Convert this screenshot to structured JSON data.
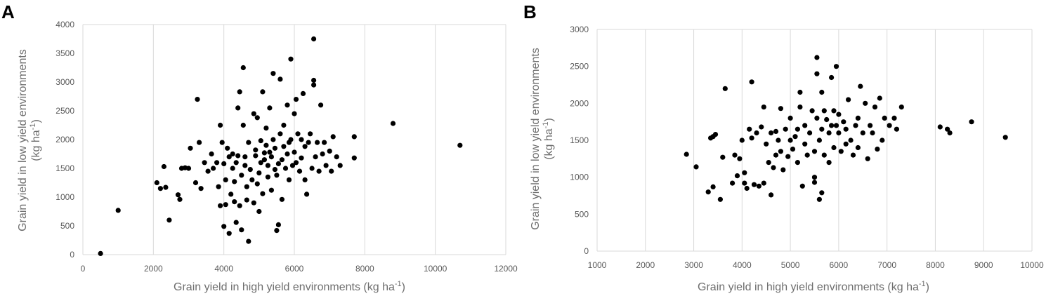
{
  "chart_data": [
    {
      "panel": "A",
      "type": "scatter",
      "xlabel": "Grain yield in high yield environments (kg ha",
      "xlabel_sup": "-1",
      "xlabel_end": ")",
      "ylabel_line1": "Grain yield in low yield environments",
      "ylabel_line2": "(kg ha",
      "ylabel_sup": "-1",
      "ylabel_end": ")",
      "xlim": [
        0,
        12000
      ],
      "ylim": [
        0,
        4000
      ],
      "xticks": [
        "0",
        "2000",
        "4000",
        "6000",
        "8000",
        "10000",
        "12000"
      ],
      "yticks": [
        "0",
        "500",
        "1000",
        "1500",
        "2000",
        "2500",
        "3000",
        "3500",
        "4000"
      ],
      "grid": "vertical",
      "points": [
        [
          500,
          20
        ],
        [
          1000,
          770
        ],
        [
          2100,
          1250
        ],
        [
          2200,
          1150
        ],
        [
          2300,
          1530
        ],
        [
          2350,
          1170
        ],
        [
          2450,
          600
        ],
        [
          2700,
          1040
        ],
        [
          2750,
          960
        ],
        [
          2800,
          1500
        ],
        [
          2900,
          1510
        ],
        [
          3000,
          1500
        ],
        [
          3050,
          1850
        ],
        [
          3200,
          1250
        ],
        [
          3250,
          2700
        ],
        [
          3300,
          1950
        ],
        [
          3350,
          1150
        ],
        [
          3450,
          1600
        ],
        [
          3550,
          1450
        ],
        [
          3650,
          1750
        ],
        [
          3700,
          1500
        ],
        [
          3800,
          1600
        ],
        [
          3850,
          1180
        ],
        [
          3900,
          850
        ],
        [
          3900,
          2250
        ],
        [
          3950,
          1950
        ],
        [
          4000,
          490
        ],
        [
          4000,
          1580
        ],
        [
          4050,
          1300
        ],
        [
          4050,
          870
        ],
        [
          4100,
          1850
        ],
        [
          4150,
          370
        ],
        [
          4150,
          1700
        ],
        [
          4200,
          1050
        ],
        [
          4250,
          1500
        ],
        [
          4250,
          1750
        ],
        [
          4300,
          1270
        ],
        [
          4300,
          920
        ],
        [
          4350,
          560
        ],
        [
          4350,
          1600
        ],
        [
          4400,
          1720
        ],
        [
          4400,
          2550
        ],
        [
          4450,
          2830
        ],
        [
          4450,
          850
        ],
        [
          4500,
          430
        ],
        [
          4500,
          1380
        ],
        [
          4550,
          3250
        ],
        [
          4550,
          2250
        ],
        [
          4600,
          1700
        ],
        [
          4600,
          1550
        ],
        [
          4650,
          1180
        ],
        [
          4650,
          950
        ],
        [
          4700,
          230
        ],
        [
          4700,
          1950
        ],
        [
          4750,
          1480
        ],
        [
          4800,
          1300
        ],
        [
          4850,
          2450
        ],
        [
          4850,
          900
        ],
        [
          4900,
          1820
        ],
        [
          4900,
          1720
        ],
        [
          4950,
          2380
        ],
        [
          4950,
          1230
        ],
        [
          5000,
          750
        ],
        [
          5000,
          1420
        ],
        [
          5050,
          1980
        ],
        [
          5050,
          1600
        ],
        [
          5100,
          2830
        ],
        [
          5100,
          1060
        ],
        [
          5150,
          1650
        ],
        [
          5150,
          1770
        ],
        [
          5200,
          2200
        ],
        [
          5200,
          1900
        ],
        [
          5250,
          1550
        ],
        [
          5250,
          1350
        ],
        [
          5300,
          2550
        ],
        [
          5300,
          1780
        ],
        [
          5350,
          1700
        ],
        [
          5350,
          1120
        ],
        [
          5400,
          3150
        ],
        [
          5400,
          2000
        ],
        [
          5450,
          1850
        ],
        [
          5450,
          1480
        ],
        [
          5500,
          1380
        ],
        [
          5500,
          420
        ],
        [
          5550,
          1580
        ],
        [
          5550,
          520
        ],
        [
          5600,
          3050
        ],
        [
          5600,
          2100
        ],
        [
          5650,
          1650
        ],
        [
          5650,
          960
        ],
        [
          5700,
          1880
        ],
        [
          5700,
          2250
        ],
        [
          5750,
          1500
        ],
        [
          5800,
          2600
        ],
        [
          5800,
          1750
        ],
        [
          5850,
          1300
        ],
        [
          5850,
          1950
        ],
        [
          5900,
          2000
        ],
        [
          5900,
          3400
        ],
        [
          5950,
          1550
        ],
        [
          6000,
          2450
        ],
        [
          6000,
          1780
        ],
        [
          6050,
          2700
        ],
        [
          6050,
          1600
        ],
        [
          6100,
          2100
        ],
        [
          6150,
          1450
        ],
        [
          6200,
          2000
        ],
        [
          6200,
          1680
        ],
        [
          6250,
          2800
        ],
        [
          6300,
          1880
        ],
        [
          6300,
          1300
        ],
        [
          6350,
          1050
        ],
        [
          6400,
          1950
        ],
        [
          6450,
          2100
        ],
        [
          6500,
          1500
        ],
        [
          6550,
          3750
        ],
        [
          6550,
          3030
        ],
        [
          6550,
          2950
        ],
        [
          6600,
          1700
        ],
        [
          6650,
          1950
        ],
        [
          6700,
          1450
        ],
        [
          6750,
          2600
        ],
        [
          6800,
          1750
        ],
        [
          6850,
          1950
        ],
        [
          6900,
          1550
        ],
        [
          7000,
          1800
        ],
        [
          7050,
          1450
        ],
        [
          7100,
          2050
        ],
        [
          7200,
          1700
        ],
        [
          7300,
          1550
        ],
        [
          7700,
          2050
        ],
        [
          7700,
          1680
        ],
        [
          8800,
          2280
        ],
        [
          10700,
          1900
        ]
      ]
    },
    {
      "panel": "B",
      "type": "scatter",
      "xlabel": "Grain yield in high yield environments (kg ha",
      "xlabel_sup": "-1",
      "xlabel_end": ")",
      "ylabel_line1": "Grain yield in low yield environments",
      "ylabel_line2": "(kg ha",
      "ylabel_sup": "-1",
      "ylabel_end": ")",
      "xlim": [
        1000,
        10000
      ],
      "ylim": [
        0,
        3000
      ],
      "xticks": [
        "1000",
        "2000",
        "3000",
        "4000",
        "5000",
        "6000",
        "7000",
        "8000",
        "9000",
        "10000"
      ],
      "yticks": [
        "0",
        "500",
        "1000",
        "1500",
        "2000",
        "2500",
        "3000"
      ],
      "grid": "vertical",
      "points": [
        [
          2850,
          1310
        ],
        [
          3050,
          1140
        ],
        [
          3300,
          800
        ],
        [
          3350,
          1530
        ],
        [
          3400,
          1550
        ],
        [
          3400,
          870
        ],
        [
          3450,
          1580
        ],
        [
          3550,
          700
        ],
        [
          3600,
          1270
        ],
        [
          3650,
          2200
        ],
        [
          3800,
          920
        ],
        [
          3850,
          1300
        ],
        [
          3900,
          1020
        ],
        [
          3950,
          1250
        ],
        [
          4000,
          1500
        ],
        [
          4050,
          1060
        ],
        [
          4050,
          920
        ],
        [
          4100,
          850
        ],
        [
          4150,
          1650
        ],
        [
          4200,
          2290
        ],
        [
          4200,
          1530
        ],
        [
          4250,
          900
        ],
        [
          4300,
          1600
        ],
        [
          4350,
          880
        ],
        [
          4400,
          1680
        ],
        [
          4450,
          1950
        ],
        [
          4450,
          920
        ],
        [
          4500,
          1450
        ],
        [
          4550,
          1200
        ],
        [
          4600,
          1600
        ],
        [
          4600,
          760
        ],
        [
          4650,
          1130
        ],
        [
          4700,
          1300
        ],
        [
          4700,
          1620
        ],
        [
          4750,
          1500
        ],
        [
          4800,
          1350
        ],
        [
          4800,
          1930
        ],
        [
          4850,
          1100
        ],
        [
          4900,
          1650
        ],
        [
          4950,
          1280
        ],
        [
          5000,
          1800
        ],
        [
          5000,
          1500
        ],
        [
          5050,
          1380
        ],
        [
          5100,
          1550
        ],
        [
          5150,
          1650
        ],
        [
          5150,
          1200
        ],
        [
          5200,
          2150
        ],
        [
          5200,
          1950
        ],
        [
          5250,
          880
        ],
        [
          5300,
          1450
        ],
        [
          5300,
          1700
        ],
        [
          5350,
          1300
        ],
        [
          5400,
          1600
        ],
        [
          5450,
          1900
        ],
        [
          5500,
          1000
        ],
        [
          5500,
          1350
        ],
        [
          5500,
          930
        ],
        [
          5550,
          2400
        ],
        [
          5550,
          2620
        ],
        [
          5550,
          1800
        ],
        [
          5600,
          700
        ],
        [
          5600,
          1500
        ],
        [
          5650,
          1650
        ],
        [
          5650,
          2150
        ],
        [
          5650,
          790
        ],
        [
          5700,
          1900
        ],
        [
          5700,
          1300
        ],
        [
          5750,
          1780
        ],
        [
          5800,
          1200
        ],
        [
          5800,
          1600
        ],
        [
          5850,
          1700
        ],
        [
          5850,
          2350
        ],
        [
          5900,
          1900
        ],
        [
          5900,
          1400
        ],
        [
          5950,
          2500
        ],
        [
          5950,
          1700
        ],
        [
          6000,
          1850
        ],
        [
          6000,
          1600
        ],
        [
          6050,
          1350
        ],
        [
          6100,
          1750
        ],
        [
          6150,
          1450
        ],
        [
          6150,
          1650
        ],
        [
          6200,
          2050
        ],
        [
          6250,
          1500
        ],
        [
          6300,
          1300
        ],
        [
          6350,
          1700
        ],
        [
          6400,
          1400
        ],
        [
          6400,
          1800
        ],
        [
          6450,
          2230
        ],
        [
          6500,
          1600
        ],
        [
          6550,
          2000
        ],
        [
          6600,
          1250
        ],
        [
          6650,
          1700
        ],
        [
          6700,
          1600
        ],
        [
          6750,
          1950
        ],
        [
          6800,
          1380
        ],
        [
          6850,
          2070
        ],
        [
          6900,
          1500
        ],
        [
          6950,
          1800
        ],
        [
          7050,
          1700
        ],
        [
          7150,
          1800
        ],
        [
          7200,
          1650
        ],
        [
          7300,
          1950
        ],
        [
          8100,
          1680
        ],
        [
          8250,
          1650
        ],
        [
          8300,
          1600
        ],
        [
          8750,
          1750
        ],
        [
          9450,
          1540
        ]
      ]
    }
  ]
}
